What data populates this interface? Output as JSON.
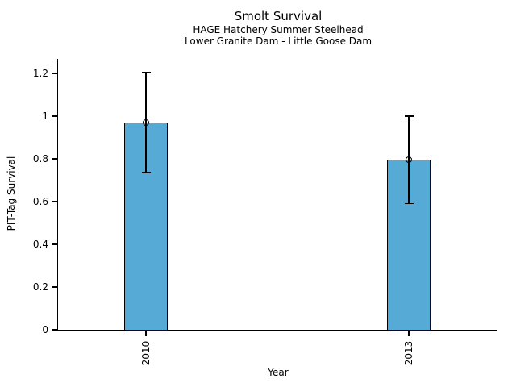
{
  "header": {
    "title": "Smolt Survival",
    "subtitle1": "HAGE Hatchery Summer Steelhead",
    "subtitle2": "Lower Granite Dam - Little Goose Dam"
  },
  "axes": {
    "xlabel": "Year",
    "ylabel": "PIT-Tag Survival",
    "ytick_labels": [
      "0",
      "0.2",
      "0.4",
      "0.6",
      "0.8",
      "1",
      "1.2"
    ]
  },
  "chart_data": {
    "type": "bar",
    "title": "Smolt Survival",
    "subtitle": [
      "HAGE Hatchery Summer Steelhead",
      "Lower Granite Dam - Little Goose Dam"
    ],
    "categories": [
      "2010",
      "2013"
    ],
    "series": [
      {
        "name": "PIT-Tag Survival",
        "values": [
          0.97,
          0.795
        ],
        "error_low": [
          0.735,
          0.59
        ],
        "error_high": [
          1.205,
          1.0
        ]
      }
    ],
    "xlabel": "Year",
    "ylabel": "PIT-Tag Survival",
    "ylim": [
      0,
      1.26
    ],
    "yticks": [
      0,
      0.2,
      0.4,
      0.6,
      0.8,
      1,
      1.2
    ],
    "x_tick_rotation": 90,
    "grid": false,
    "legend_position": "none",
    "colors": {
      "bar_fill": "#56aad6",
      "bar_edge": "#000000",
      "error_bar": "#000000",
      "marker_edge": "#000000",
      "background": "#ffffff"
    },
    "marker": "open-circle"
  }
}
